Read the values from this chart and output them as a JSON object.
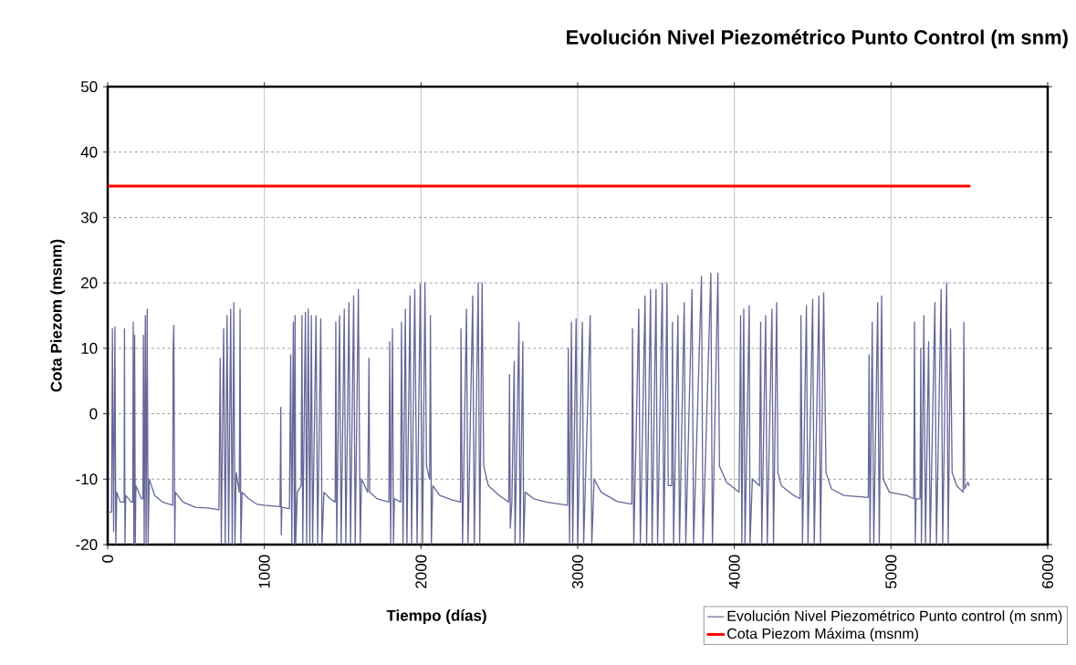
{
  "chart_data": {
    "type": "line",
    "title": "Evolución Nivel Piezométrico Punto Control (m snm)",
    "xlabel": "Tiempo (días)",
    "ylabel": "Cota Piezom (msnm)",
    "xlim": [
      0,
      6000
    ],
    "xticks": [
      0,
      1000,
      2000,
      3000,
      4000,
      5000,
      6000
    ],
    "ylim": [
      -20,
      50
    ],
    "yticks": [
      -20,
      -10,
      0,
      10,
      20,
      30,
      40,
      50
    ],
    "grid": true,
    "legend": "bottom right",
    "marker": "none",
    "line_style": "solid",
    "series": [
      {
        "name": "Evolución Nivel Piezométrico Punto control (m snm)",
        "color": "#666699",
        "x": [
          0,
          25,
          30,
          38,
          46,
          52,
          58,
          80,
          105,
          107,
          110,
          115,
          150,
          160,
          163,
          167,
          172,
          176,
          180,
          215,
          225,
          228,
          233,
          240,
          245,
          252,
          258,
          265,
          300,
          350,
          415,
          418,
          422,
          428,
          432,
          480,
          560,
          640,
          710,
          718,
          725,
          740,
          750,
          762,
          772,
          785,
          795,
          805,
          812,
          820,
          840,
          845,
          850,
          858,
          900,
          950,
          1000,
          1100,
          1105,
          1108,
          1112,
          1160,
          1168,
          1175,
          1185,
          1192,
          1196,
          1200,
          1210,
          1235,
          1240,
          1245,
          1262,
          1270,
          1280,
          1290,
          1300,
          1308,
          1330,
          1340,
          1360,
          1368,
          1380,
          1420,
          1452,
          1456,
          1462,
          1480,
          1490,
          1510,
          1520,
          1540,
          1550,
          1570,
          1580,
          1600,
          1612,
          1620,
          1660,
          1668,
          1672,
          1720,
          1795,
          1800,
          1806,
          1818,
          1824,
          1830,
          1870,
          1875,
          1885,
          1900,
          1910,
          1930,
          1940,
          1960,
          1975,
          1995,
          2010,
          2025,
          2035,
          2055,
          2060,
          2066,
          2075,
          2120,
          2200,
          2252,
          2255,
          2265,
          2290,
          2300,
          2330,
          2340,
          2365,
          2375,
          2390,
          2400,
          2430,
          2500,
          2560,
          2565,
          2570,
          2580,
          2595,
          2600,
          2625,
          2632,
          2650,
          2655,
          2665,
          2720,
          2800,
          2935,
          2940,
          2948,
          2960,
          2968,
          2990,
          3000,
          3030,
          3038,
          3080,
          3090,
          3105,
          3150,
          3250,
          3345,
          3350,
          3358,
          3390,
          3400,
          3430,
          3440,
          3465,
          3475,
          3500,
          3510,
          3540,
          3550,
          3570,
          3578,
          3600,
          3605,
          3612,
          3640,
          3650,
          3680,
          3690,
          3730,
          3740,
          3790,
          3800,
          3850,
          3860,
          3895,
          3905,
          3950,
          4030,
          4040,
          4048,
          4060,
          4068,
          4095,
          4100,
          4115,
          4160,
          4168,
          4175,
          4200,
          4210,
          4240,
          4250,
          4270,
          4278,
          4300,
          4380,
          4420,
          4425,
          4435,
          4460,
          4470,
          4500,
          4510,
          4540,
          4550,
          4570,
          4585,
          4620,
          4700,
          4855,
          4860,
          4866,
          4880,
          4890,
          4915,
          4925,
          4940,
          4950,
          4990,
          5100,
          5145,
          5150,
          5155,
          5160,
          5185,
          5190,
          5194,
          5210,
          5220,
          5240,
          5250,
          5280,
          5290,
          5320,
          5330,
          5355,
          5365,
          5380,
          5390,
          5420,
          5460,
          5465,
          5470,
          5490,
          5500
        ],
        "values": [
          -15.1,
          -15,
          13,
          -18,
          13.3,
          -20,
          -12,
          -13.5,
          -13.5,
          13,
          -20,
          -12.5,
          -13.5,
          -13.5,
          14,
          -20,
          12,
          -20,
          -11,
          -13,
          -13,
          12,
          -20,
          15,
          -20,
          16,
          -20,
          -10,
          -12.5,
          -13.5,
          -14,
          10,
          13.5,
          -20,
          -12,
          -13.5,
          -14.3,
          -14.4,
          -14.7,
          8.5,
          -20,
          13,
          -20,
          15,
          -20,
          16,
          -20,
          17,
          -20,
          -9,
          -12,
          16,
          -20,
          -12,
          -13,
          -13.8,
          -14,
          -14.2,
          1,
          -18.5,
          -14.3,
          -14.5,
          9,
          -20,
          14,
          -20,
          15,
          -20,
          -12,
          -11,
          15,
          -20,
          15.5,
          -20,
          16,
          -20,
          15,
          -20,
          15,
          -20,
          14.5,
          -20,
          -12,
          -13,
          -13.5,
          14,
          -20,
          15,
          -20,
          16,
          -20,
          17,
          -20,
          18,
          -20,
          19,
          -20,
          -10,
          -12,
          8.5,
          -12,
          -13,
          -13.5,
          11,
          -20,
          13,
          -20,
          -13,
          -13.5,
          14,
          -20,
          16,
          -20,
          18,
          -20,
          19,
          -20,
          19.8,
          -20,
          20,
          -8,
          -10,
          15,
          -20,
          -11,
          -12.5,
          -13.2,
          -13.5,
          13,
          -20,
          16,
          -20,
          18,
          -20,
          20,
          -20,
          20,
          -8,
          -11,
          -12.5,
          -13.5,
          6,
          -17.5,
          -13.5,
          8,
          -20,
          14,
          -20,
          11,
          -20,
          -12,
          -13,
          -13.5,
          -14,
          10,
          -20,
          14,
          -20,
          14.5,
          -20,
          14,
          -20,
          15,
          -20,
          -10,
          -12,
          -13.4,
          -13.8,
          13,
          -20,
          16,
          -20,
          18,
          -20,
          19,
          -20,
          19,
          -20,
          20,
          -20,
          20,
          -11,
          -11,
          14,
          -20,
          15,
          -20,
          17,
          -20,
          19,
          -20,
          21,
          -20,
          21.5,
          -20,
          21.5,
          -8,
          -10.5,
          -12,
          15,
          -20,
          16,
          -20,
          16.5,
          -20,
          -10,
          -11,
          14,
          -20,
          15,
          -20,
          16,
          -20,
          17,
          -9,
          -11,
          -12.5,
          -13,
          15,
          -20,
          16.5,
          -20,
          17.5,
          -20,
          18,
          -20,
          18.5,
          -9,
          -11.5,
          -12.5,
          -12.8,
          9,
          -20,
          14,
          -20,
          17,
          -20,
          18,
          -10,
          -12,
          -12.5,
          -13,
          14,
          -20,
          -13,
          -13,
          10,
          -20,
          15,
          -20,
          11,
          -20,
          17,
          -20,
          19,
          -20,
          20,
          -20,
          13,
          -9,
          -11,
          -12,
          14,
          -11.5,
          -10.5,
          -11
        ]
      },
      {
        "name": "Cota Piezom Máxima (msnm)",
        "color": "#ff0000",
        "x": [
          0,
          5500
        ],
        "values": [
          34.8,
          34.8
        ]
      }
    ]
  }
}
